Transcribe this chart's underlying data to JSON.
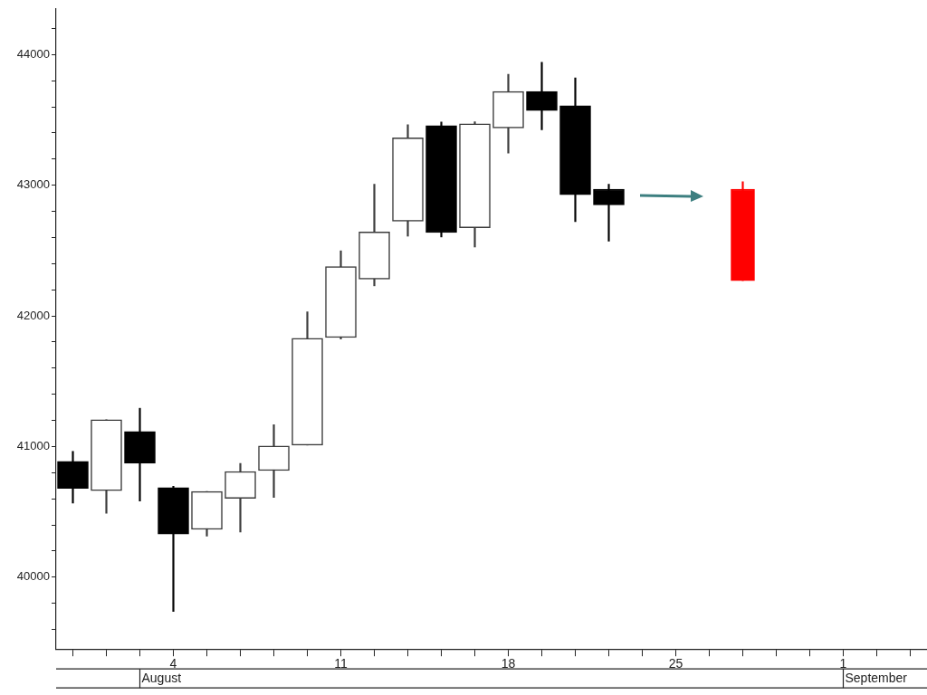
{
  "chart_data": {
    "type": "candlestick",
    "categories": [
      null,
      null,
      null,
      "4",
      null,
      null,
      null,
      null,
      "11",
      null,
      null,
      null,
      null,
      "18",
      null,
      null,
      null,
      null,
      "25",
      null,
      null,
      null,
      null,
      "1",
      null,
      null
    ],
    "series": [
      {
        "ohlc": [
          [
            40886,
            40963,
            40567,
            40680
          ],
          [
            40662,
            41205,
            40490,
            41205
          ],
          [
            41115,
            41293,
            40583,
            40872
          ],
          [
            40685,
            40696,
            39737,
            40330
          ],
          [
            40366,
            40656,
            40314,
            40656
          ],
          [
            40603,
            40870,
            40346,
            40809
          ],
          [
            40816,
            41167,
            40610,
            41004
          ],
          [
            41011,
            42031,
            41011,
            41828
          ],
          [
            41834,
            42498,
            41823,
            42377
          ],
          [
            42282,
            43007,
            42230,
            42642
          ],
          [
            42724,
            43464,
            42610,
            43362
          ],
          [
            43457,
            43484,
            42604,
            42638
          ],
          [
            42674,
            43485,
            42527,
            43470
          ],
          [
            43439,
            43849,
            43246,
            43717
          ],
          [
            43717,
            43941,
            43425,
            43572
          ],
          [
            43608,
            43821,
            42721,
            42927
          ],
          [
            42970,
            43007,
            42572,
            42850
          ],
          null,
          null,
          null,
          null,
          null,
          null,
          null,
          null,
          null
        ]
      },
      {
        "color": "#ff0000",
        "ohlc": [
          null,
          null,
          null,
          null,
          null,
          null,
          null,
          null,
          null,
          null,
          null,
          null,
          null,
          null,
          null,
          null,
          null,
          null,
          null,
          null,
          [
            42970,
            43027,
            42270,
            42270
          ],
          null,
          null,
          null,
          null,
          null
        ]
      }
    ],
    "ylim": [
      39450,
      44350
    ],
    "yticks": [
      {
        "value": 39600,
        "label": null
      },
      {
        "value": 39800,
        "label": null
      },
      40000,
      {
        "value": 40200,
        "label": null
      },
      {
        "value": 40400,
        "label": null
      },
      {
        "value": 40600,
        "label": null
      },
      {
        "value": 40800,
        "label": null
      },
      41000,
      {
        "value": 41200,
        "label": null
      },
      {
        "value": 41400,
        "label": null
      },
      {
        "value": 41600,
        "label": null
      },
      {
        "value": 41800,
        "label": null
      },
      42000,
      {
        "value": 42200,
        "label": null
      },
      {
        "value": 42400,
        "label": null
      },
      {
        "value": 42600,
        "label": null
      },
      {
        "value": 42800,
        "label": null
      },
      43000,
      {
        "value": 43200,
        "label": null
      },
      {
        "value": 43400,
        "label": null
      },
      {
        "value": 43600,
        "label": null
      },
      {
        "value": 43800,
        "label": null
      },
      44000,
      {
        "value": 44200,
        "label": null
      }
    ],
    "grid": false,
    "legend": false,
    "annotations": [
      "August",
      "September"
    ]
  }
}
